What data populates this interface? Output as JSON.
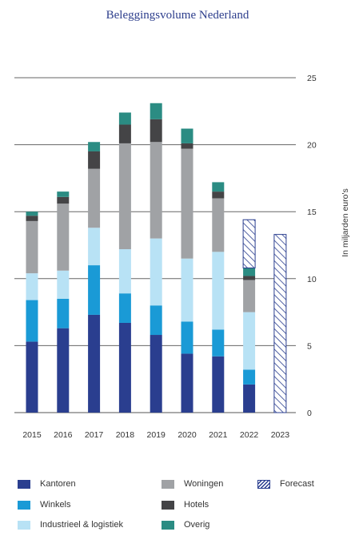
{
  "chart_data": {
    "type": "bar",
    "stacked": true,
    "title": "Beleggingsvolume Nederland",
    "xlabel": "",
    "ylabel": "In miljarden euro's",
    "ylim": [
      0,
      25
    ],
    "yticks": [
      0,
      5,
      10,
      15,
      20,
      25
    ],
    "y_axis_position": "right",
    "grid": "horizontal",
    "legend_position": "bottom",
    "categories": [
      "2015",
      "2016",
      "2017",
      "2018",
      "2019",
      "2020",
      "2021",
      "2022",
      "2023"
    ],
    "series": [
      {
        "name": "Kantoren",
        "color": "#2a3e8f",
        "values": [
          5.3,
          6.3,
          7.3,
          6.7,
          5.8,
          4.4,
          4.2,
          2.1,
          0
        ]
      },
      {
        "name": "Winkels",
        "color": "#1a9ad6",
        "values": [
          3.1,
          2.2,
          3.7,
          2.2,
          2.2,
          2.4,
          2.0,
          1.1,
          0
        ]
      },
      {
        "name": "Industrieel & logistiek",
        "color": "#b8e2f5",
        "values": [
          2.0,
          2.1,
          2.8,
          3.3,
          5.0,
          4.7,
          5.8,
          4.3,
          0
        ]
      },
      {
        "name": "Woningen",
        "color": "#a0a2a5",
        "values": [
          3.9,
          5.0,
          4.4,
          7.9,
          7.2,
          8.2,
          4.0,
          2.4,
          0
        ]
      },
      {
        "name": "Hotels",
        "color": "#444446",
        "values": [
          0.4,
          0.5,
          1.3,
          1.4,
          1.7,
          0.4,
          0.5,
          0.3,
          0
        ]
      },
      {
        "name": "Overig",
        "color": "#2b8c83",
        "values": [
          0.3,
          0.4,
          0.7,
          0.9,
          1.2,
          1.1,
          0.7,
          0.6,
          0
        ]
      },
      {
        "name": "Forecast",
        "color": "#2a3e8f",
        "pattern": "hatched",
        "values": [
          0,
          0,
          0,
          0,
          0,
          0,
          0,
          3.6,
          13.3
        ]
      }
    ]
  },
  "legend_layout": {
    "columns": [
      [
        "Kantoren",
        "Winkels",
        "Industrieel & logistiek"
      ],
      [
        "Woningen",
        "Hotels",
        "Overig"
      ],
      [
        "Forecast"
      ]
    ]
  }
}
